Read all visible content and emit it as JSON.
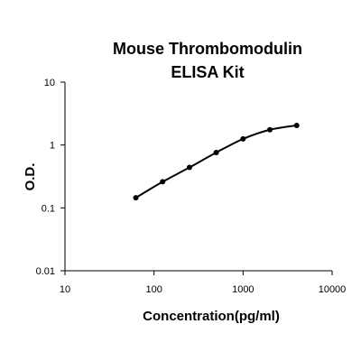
{
  "chart_data": {
    "type": "scatter",
    "title": [
      "Mouse Thrombomodulin",
      "ELISA Kit"
    ],
    "xlabel": "Concentration(pg/ml)",
    "ylabel": "O.D.",
    "xscale": "log",
    "yscale": "log",
    "xlim": [
      10,
      10000
    ],
    "ylim": [
      0.01,
      10
    ],
    "xticks": [
      "10",
      "100",
      "1000",
      "10000"
    ],
    "yticks": [
      "0.01",
      "0.1",
      "1",
      "10"
    ],
    "grid": false,
    "legend": "none",
    "curve": "smooth fitted line",
    "series": [
      {
        "x": [
          62.5,
          125,
          250,
          500,
          1000,
          2000,
          4000
        ],
        "y": [
          0.145,
          0.26,
          0.44,
          0.76,
          1.25,
          1.75,
          2.05
        ]
      }
    ],
    "colors": {
      "marker": "#000000",
      "line": "#000000",
      "axis": "#000000"
    }
  }
}
